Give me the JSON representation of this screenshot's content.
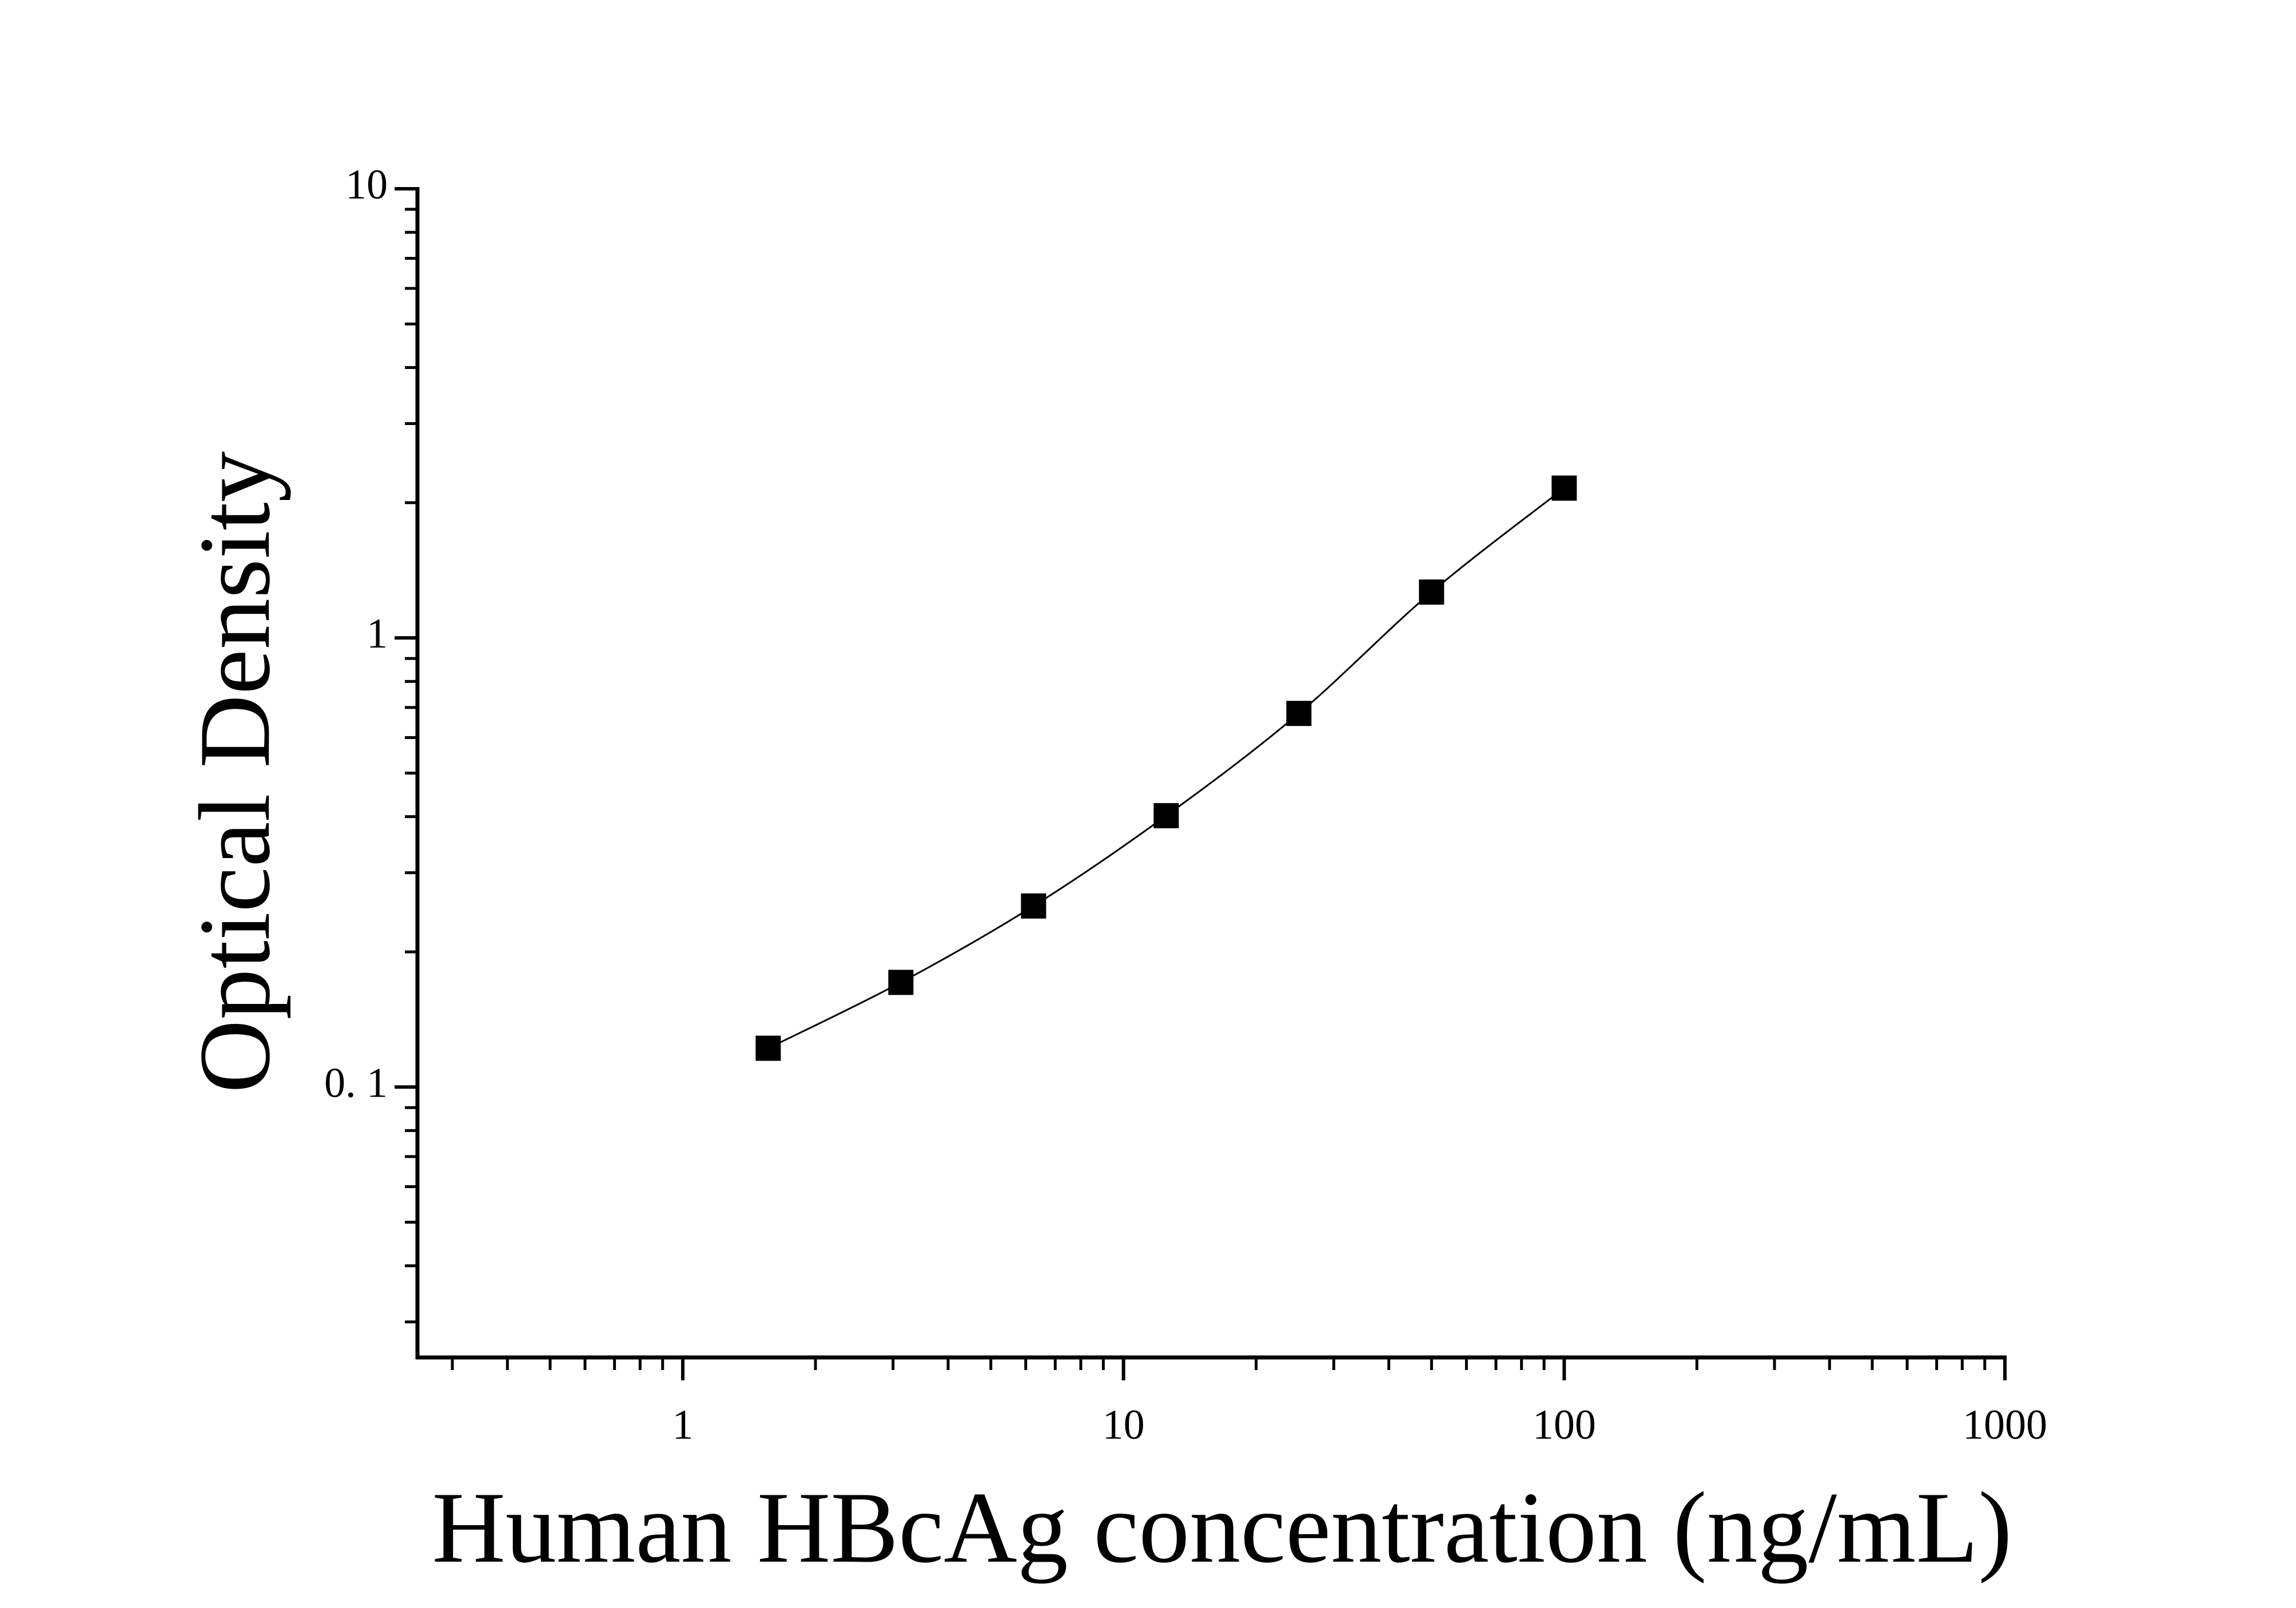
{
  "chart_data": {
    "type": "scatter",
    "x_label": "Human HBcAg concentration (ng/mL)",
    "y_label": "Optical Density",
    "x": [
      1.5625,
      3.125,
      6.25,
      12.5,
      25,
      50,
      100
    ],
    "series": [
      {
        "color": "#000000",
        "values": [
          0.122,
          0.171,
          0.253,
          0.402,
          0.679,
          1.265,
          2.155
        ]
      }
    ],
    "xlim": [
      0.25,
      1000
    ],
    "ylim": [
      0.025,
      10
    ],
    "xticks": [
      1,
      10,
      100,
      1000
    ],
    "yticks": [
      {
        "value": 0.1,
        "label": "0. 1"
      },
      1,
      10
    ],
    "xscale": "log",
    "yscale": "log",
    "fit_line": true
  }
}
